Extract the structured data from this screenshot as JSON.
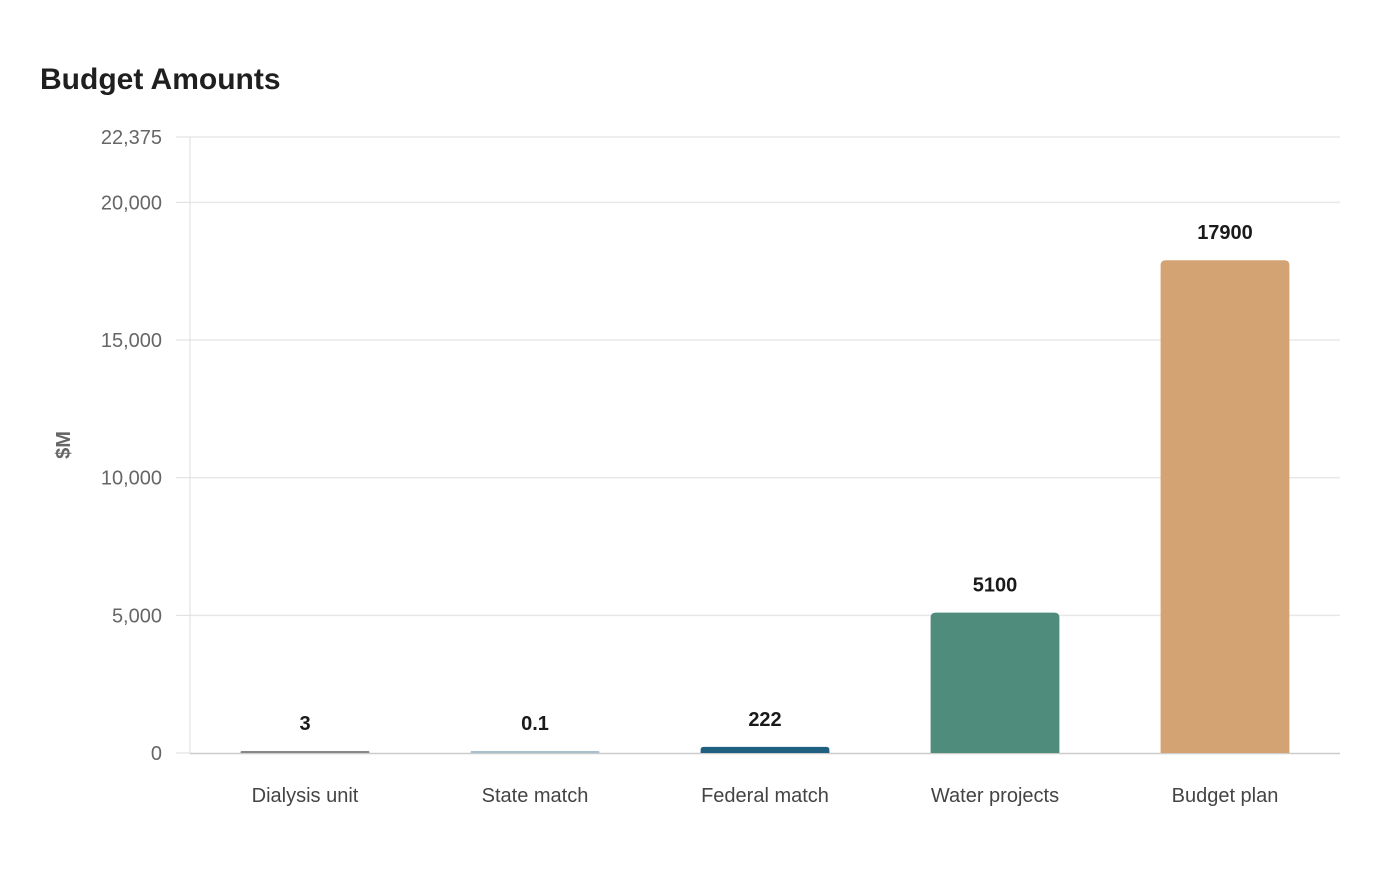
{
  "chart_data": {
    "type": "bar",
    "title": "Budget Amounts",
    "xlabel": "",
    "ylabel": "$M",
    "categories": [
      "Dialysis unit",
      "State match",
      "Federal match",
      "Water projects",
      "Budget plan"
    ],
    "values": [
      3,
      0.1,
      222,
      5100,
      17900
    ],
    "value_labels": [
      "3",
      "0.1",
      "222",
      "5100",
      "17900"
    ],
    "colors": [
      "#888888",
      "#a6c0cc",
      "#1f5f7f",
      "#4f8c7b",
      "#d4a373"
    ],
    "ylim": [
      0,
      22375
    ],
    "yticks": [
      0,
      5000,
      10000,
      15000,
      20000,
      22375
    ],
    "ytick_labels": [
      "0",
      "5,000",
      "10,000",
      "15,000",
      "20,000",
      "22,375"
    ],
    "grid": true,
    "legend": "none"
  }
}
